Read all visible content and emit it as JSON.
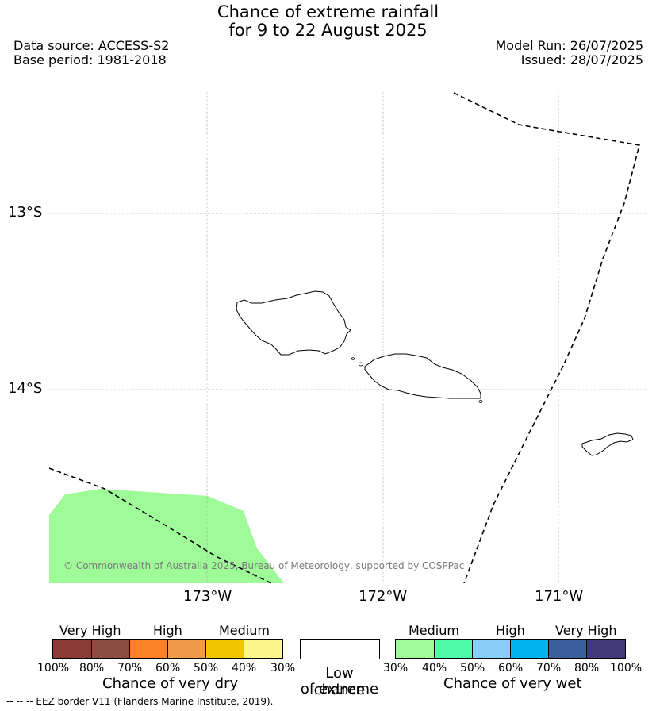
{
  "header": {
    "title_line1": "Chance of extreme rainfall",
    "title_line2": "for 9 to 22 August 2025",
    "data_source": "Data source: ACCESS-S2",
    "base_period": "Base period: 1981-2018",
    "model_run": "Model Run: 26/07/2025",
    "issued": "Issued: 28/07/2025"
  },
  "map": {
    "lat_labels": [
      "13°S",
      "14°S"
    ],
    "lon_labels": [
      "173°W",
      "172°W",
      "171°W"
    ],
    "copyright": "© Commonwealth of Australia 2025, Bureau of Meteorology, supported by COSPPac",
    "colors": {
      "wet_medium": "#9efb98",
      "border": "#000000",
      "grid": "#b0b0b0"
    }
  },
  "legend": {
    "dry": {
      "levels": [
        "Very High",
        "High",
        "Medium"
      ],
      "ticks": [
        "100%",
        "80%",
        "70%",
        "60%",
        "50%",
        "40%",
        "30%"
      ],
      "caption": "Chance of very dry",
      "colors": [
        "#8b3a34",
        "#8b4d3e",
        "#fd8127",
        "#f09b4a",
        "#f0c600",
        "#fef58c"
      ]
    },
    "low": {
      "caption_line1": "Low chance",
      "caption_line2": "of extreme",
      "color": "#ffffff"
    },
    "wet": {
      "levels": [
        "Medium",
        "High",
        "Very High"
      ],
      "ticks": [
        "30%",
        "40%",
        "50%",
        "60%",
        "70%",
        "80%",
        "100%"
      ],
      "caption": "Chance of very wet",
      "colors": [
        "#9efb98",
        "#50fba7",
        "#87cefb",
        "#00b4ef",
        "#3a5f9c",
        "#433b78"
      ]
    }
  },
  "footer": {
    "eez_note": "--  --  -- EEZ border V11 (Flanders Marine Institute, 2019)."
  }
}
